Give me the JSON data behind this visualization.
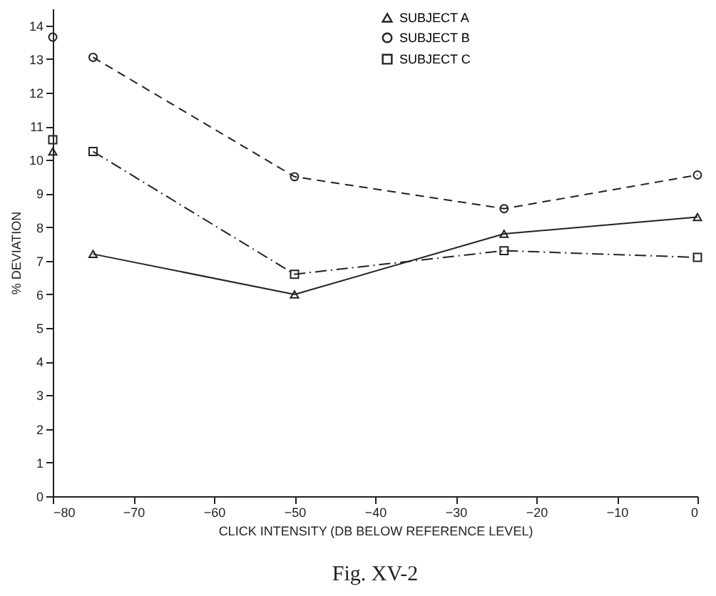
{
  "chart_data": {
    "type": "line",
    "xlabel": "CLICK INTENSITY (DB BELOW REFERENCE LEVEL)",
    "ylabel": "% DEVIATION",
    "annotations": [
      "Fig. XV-2"
    ],
    "xlim": [
      -80,
      0
    ],
    "xticks": [
      -80,
      -70,
      -60,
      -50,
      -40,
      -30,
      -20,
      -10,
      0
    ],
    "ylim": [
      0,
      14.5
    ],
    "yticks": [
      0,
      1,
      2,
      3,
      4,
      5,
      6,
      7,
      8,
      9,
      10,
      11,
      12,
      13,
      14
    ],
    "grid": false,
    "legend": "top",
    "series": [
      {
        "name": "SUBJECT A",
        "color": "#222222",
        "marker": "triangle",
        "line_style": "solid",
        "x": [
          -75,
          -50,
          -24,
          0
        ],
        "values": [
          7.2,
          6.0,
          7.8,
          8.3
        ]
      },
      {
        "name": "SUBJECT B",
        "color": "#222222",
        "marker": "circle",
        "line_style": "dashed",
        "x": [
          -75,
          -50,
          -24,
          0
        ],
        "values": [
          13.05,
          9.5,
          8.55,
          9.55
        ]
      },
      {
        "name": "SUBJECT C",
        "color": "#222222",
        "marker": "square",
        "line_style": "dashdot",
        "x": [
          -75,
          -50,
          -24,
          0
        ],
        "values": [
          10.25,
          6.6,
          7.3,
          7.1
        ]
      },
      {
        "type": "scatter",
        "color": "#222222",
        "marker": "triangle",
        "x": [
          -80
        ],
        "values": [
          10.25
        ]
      },
      {
        "type": "scatter",
        "color": "#222222",
        "marker": "circle",
        "x": [
          -80
        ],
        "values": [
          13.65
        ]
      },
      {
        "type": "scatter",
        "color": "#222222",
        "marker": "square",
        "x": [
          -80
        ],
        "values": [
          10.6
        ]
      }
    ]
  }
}
